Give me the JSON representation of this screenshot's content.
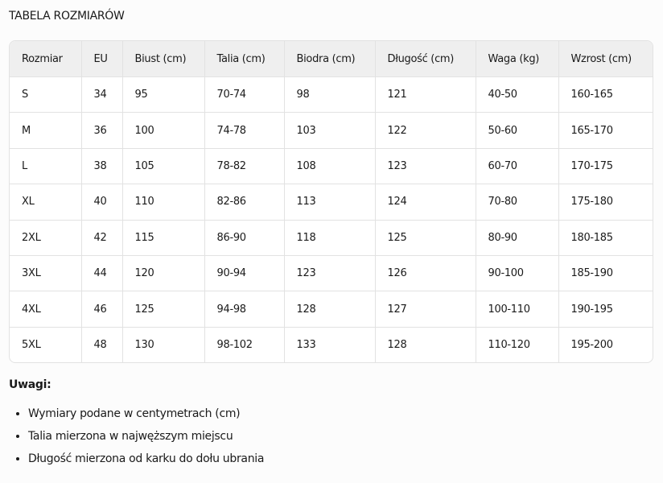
{
  "title": "TABELA ROZMIARÓW",
  "table": {
    "headers": [
      "Rozmiar",
      "EU",
      "Biust (cm)",
      "Talia (cm)",
      "Biodra (cm)",
      "Długość (cm)",
      "Waga (kg)",
      "Wzrost (cm)"
    ],
    "rows": [
      [
        "S",
        "34",
        "95",
        "70-74",
        "98",
        "121",
        "40-50",
        "160-165"
      ],
      [
        "M",
        "36",
        "100",
        "74-78",
        "103",
        "122",
        "50-60",
        "165-170"
      ],
      [
        "L",
        "38",
        "105",
        "78-82",
        "108",
        "123",
        "60-70",
        "170-175"
      ],
      [
        "XL",
        "40",
        "110",
        "82-86",
        "113",
        "124",
        "70-80",
        "175-180"
      ],
      [
        "2XL",
        "42",
        "115",
        "86-90",
        "118",
        "125",
        "80-90",
        "180-185"
      ],
      [
        "3XL",
        "44",
        "120",
        "90-94",
        "123",
        "126",
        "90-100",
        "185-190"
      ],
      [
        "4XL",
        "46",
        "125",
        "94-98",
        "128",
        "127",
        "100-110",
        "190-195"
      ],
      [
        "5XL",
        "48",
        "130",
        "98-102",
        "133",
        "128",
        "110-120",
        "195-200"
      ]
    ]
  },
  "notes": {
    "title": "Uwagi:",
    "items": [
      "Wymiary podane w centymetrach (cm)",
      "Talia mierzona w najwęższym miejscu",
      "Długość mierzona od karku do dołu ubrania"
    ]
  }
}
